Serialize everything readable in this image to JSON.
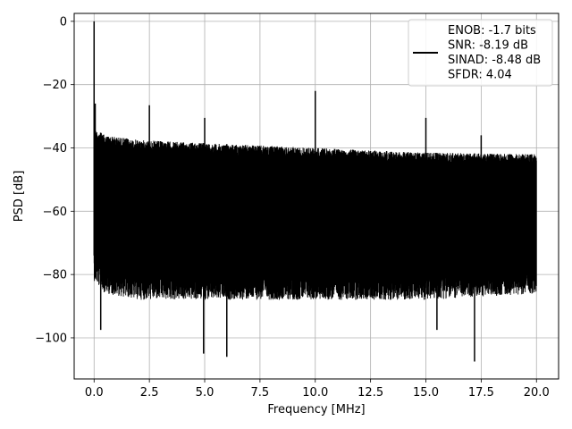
{
  "chart_data": {
    "type": "line",
    "title": "",
    "xlabel": "Frequency [MHz]",
    "ylabel": "PSD [dB]",
    "xlim": [
      -0.9,
      21.0
    ],
    "ylim": [
      -113,
      2.5
    ],
    "grid": true,
    "legend_position": "top-right",
    "x_ticks": [
      0.0,
      2.5,
      5.0,
      7.5,
      10.0,
      12.5,
      15.0,
      17.5,
      20.0
    ],
    "x_tick_labels": [
      "0.0",
      "2.5",
      "5.0",
      "7.5",
      "10.0",
      "12.5",
      "15.0",
      "17.5",
      "20.0"
    ],
    "y_ticks": [
      0,
      -20,
      -40,
      -60,
      -80,
      -100
    ],
    "y_tick_labels": [
      "0",
      "−20",
      "−40",
      "−60",
      "−80",
      "−100"
    ],
    "series": [
      {
        "color": "#000000",
        "legend_lines": [
          "ENOB: -1.7 bits",
          "SNR: -8.19 dB",
          "SINAD: -8.48 dB",
          "SFDR: 4.04"
        ],
        "x_range": [
          0,
          20
        ],
        "noise_floor_top": [
          [
            0,
            -34
          ],
          [
            0.5,
            -36
          ],
          [
            2,
            -37.5
          ],
          [
            5,
            -38.5
          ],
          [
            10,
            -40
          ],
          [
            15,
            -41.5
          ],
          [
            20,
            -42
          ]
        ],
        "noise_floor_bottom": [
          [
            0,
            -74
          ],
          [
            0.5,
            -78
          ],
          [
            2,
            -80
          ],
          [
            5,
            -80
          ],
          [
            10,
            -80
          ],
          [
            15,
            -80
          ],
          [
            20,
            -78
          ]
        ],
        "spikes": [
          {
            "x": 0.0,
            "y": 0
          },
          {
            "x": 0.05,
            "y": -26
          },
          {
            "x": 2.5,
            "y": -26.5
          },
          {
            "x": 5.0,
            "y": -30.5
          },
          {
            "x": 10.0,
            "y": -22
          },
          {
            "x": 15.0,
            "y": -30.5
          },
          {
            "x": 17.5,
            "y": -36
          }
        ],
        "dips": [
          {
            "x": 0.3,
            "y": -97.5
          },
          {
            "x": 4.95,
            "y": -105
          },
          {
            "x": 6.0,
            "y": -106
          },
          {
            "x": 15.5,
            "y": -97.5
          },
          {
            "x": 17.2,
            "y": -107.5
          }
        ]
      }
    ]
  }
}
